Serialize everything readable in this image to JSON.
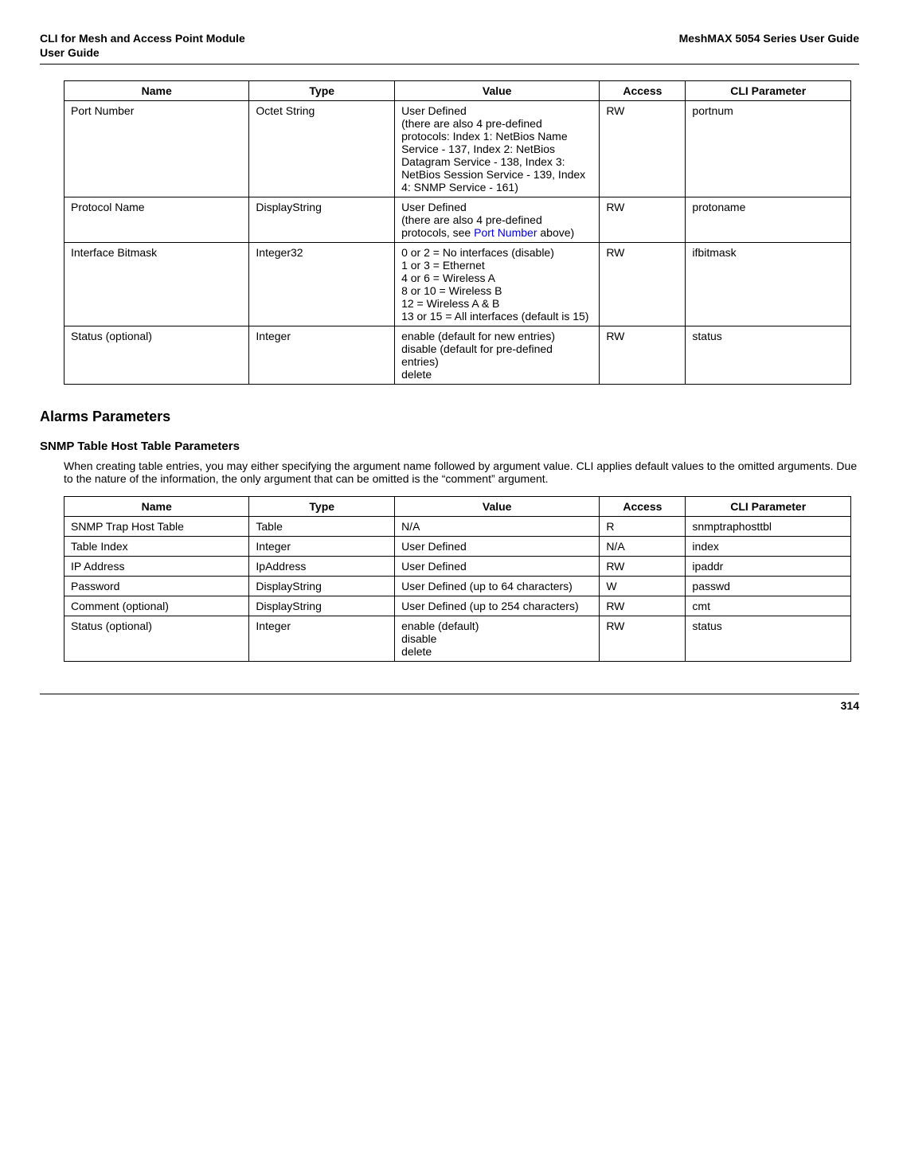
{
  "header": {
    "left_line1": "CLI for Mesh and Access Point Module",
    "left_line2": " User Guide",
    "right": "MeshMAX 5054 Series User Guide"
  },
  "table1": {
    "headers": [
      "Name",
      "Type",
      "Value",
      "Access",
      "CLI Parameter"
    ],
    "rows": [
      {
        "name": "Port Number",
        "type": "Octet String",
        "value": "User Defined\n(there are also 4 pre-defined protocols: Index 1: NetBios Name Service - 137, Index 2: NetBios Datagram Service - 138, Index 3: NetBios Session Service - 139, Index 4: SNMP Service - 161)",
        "access": "RW",
        "cli": "portnum"
      },
      {
        "name": "Protocol Name",
        "type": "DisplayString",
        "value_prefix": "User Defined\n(there are also 4 pre-defined protocols, see ",
        "value_link": "Port Number",
        "value_suffix": " above)",
        "access": "RW",
        "cli": "protoname"
      },
      {
        "name": "Interface Bitmask",
        "type": "Integer32",
        "value": "0 or 2 = No interfaces (disable)\n1 or 3 = Ethernet\n4 or 6 = Wireless A\n8 or 10 = Wireless B\n12 = Wireless A & B\n13 or 15 = All interfaces (default is 15)",
        "access": "RW",
        "cli": "ifbitmask"
      },
      {
        "name": "Status (optional)",
        "type": "Integer",
        "value": "enable (default for new entries)\ndisable (default for pre-defined entries)\ndelete",
        "access": "RW",
        "cli": "status"
      }
    ]
  },
  "sections": {
    "alarms_title": "Alarms Parameters",
    "snmp_subtitle": "SNMP Table Host Table Parameters",
    "snmp_body": "When creating table entries, you may either specifying the argument name followed by argument value. CLI applies default values to the omitted arguments. Due to the nature of the information, the only argument that can be omitted is the “comment” argument."
  },
  "table2": {
    "headers": [
      "Name",
      "Type",
      "Value",
      "Access",
      "CLI Parameter"
    ],
    "rows": [
      {
        "name": "SNMP Trap Host Table",
        "type": "Table",
        "value": "N/A",
        "access": "R",
        "cli": "snmptraphosttbl",
        "access_center": true
      },
      {
        "name": "Table Index",
        "type": "Integer",
        "value": "User Defined",
        "access": "N/A",
        "cli": "index",
        "access_center": true
      },
      {
        "name": "IP Address",
        "type": "IpAddress",
        "value": "User Defined",
        "access": "RW",
        "cli": "ipaddr",
        "access_center": true
      },
      {
        "name": "Password",
        "type": "DisplayString",
        "value": "User Defined (up to 64 characters)",
        "access": "W",
        "cli": "passwd",
        "access_center": true
      },
      {
        "name": "Comment (optional)",
        "type": "DisplayString",
        "value": "User Defined (up to 254 characters)",
        "access": "RW",
        "cli": "cmt",
        "access_center": true
      },
      {
        "name": "Status (optional)",
        "type": "Integer",
        "value": "enable (default)\ndisable\ndelete",
        "access": "RW",
        "cli": "status",
        "access_center": true
      }
    ]
  },
  "page_number": "314"
}
